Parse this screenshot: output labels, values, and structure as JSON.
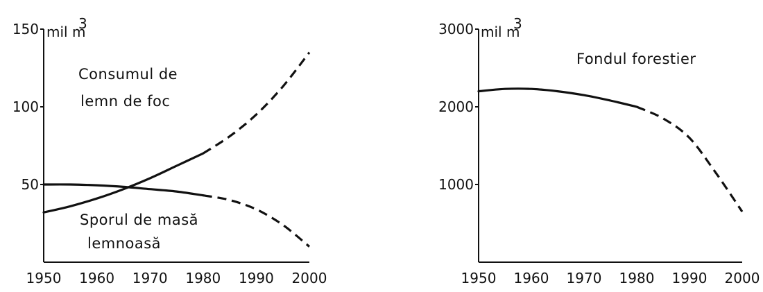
{
  "chart_data": [
    {
      "type": "line",
      "unit_label": "mil m",
      "unit_superscript": "3",
      "x_ticks": [
        "1950",
        "1960",
        "1970",
        "1980",
        "1990",
        "2000"
      ],
      "y_ticks": [
        "150",
        "100",
        "50"
      ],
      "xlim": [
        1950,
        2000
      ],
      "ylim": [
        0,
        150
      ],
      "series": [
        {
          "annotation": [
            "Consumul de",
            "lemn de foc"
          ],
          "solid": {
            "x": [
              1950,
              1955,
              1960,
              1965,
              1970,
              1975,
              1980
            ],
            "y": [
              32,
              36,
              41,
              47,
              54,
              62,
              70
            ]
          },
          "dashed": {
            "x": [
              1980,
              1985,
              1990,
              1995,
              2000
            ],
            "y": [
              70,
              81,
              95,
              113,
              135
            ]
          }
        },
        {
          "annotation": [
            "Sporul de masă",
            "lemnoasă"
          ],
          "solid": {
            "x": [
              1950,
              1955,
              1960,
              1965,
              1970,
              1975,
              1980
            ],
            "y": [
              50,
              50,
              49.5,
              48.5,
              47,
              45.5,
              43
            ]
          },
          "dashed": {
            "x": [
              1980,
              1985,
              1990,
              1995,
              2000
            ],
            "y": [
              43,
              40,
              34,
              24,
              10
            ]
          }
        }
      ]
    },
    {
      "type": "line",
      "unit_label": "mil m",
      "unit_superscript": "3",
      "x_ticks": [
        "1950",
        "1960",
        "1970",
        "1980",
        "1990",
        "2000"
      ],
      "y_ticks": [
        "3000",
        "2000",
        "1000"
      ],
      "xlim": [
        1950,
        2000
      ],
      "ylim": [
        0,
        3000
      ],
      "series": [
        {
          "annotation": [
            "Fondul forestier"
          ],
          "solid": {
            "x": [
              1950,
              1955,
              1960,
              1965,
              1970,
              1975,
              1980
            ],
            "y": [
              2200,
              2230,
              2230,
              2200,
              2150,
              2080,
              2000
            ]
          },
          "dashed": {
            "x": [
              1980,
              1985,
              1990,
              1995,
              2000
            ],
            "y": [
              2000,
              1850,
              1600,
              1150,
              650
            ]
          }
        }
      ]
    }
  ]
}
